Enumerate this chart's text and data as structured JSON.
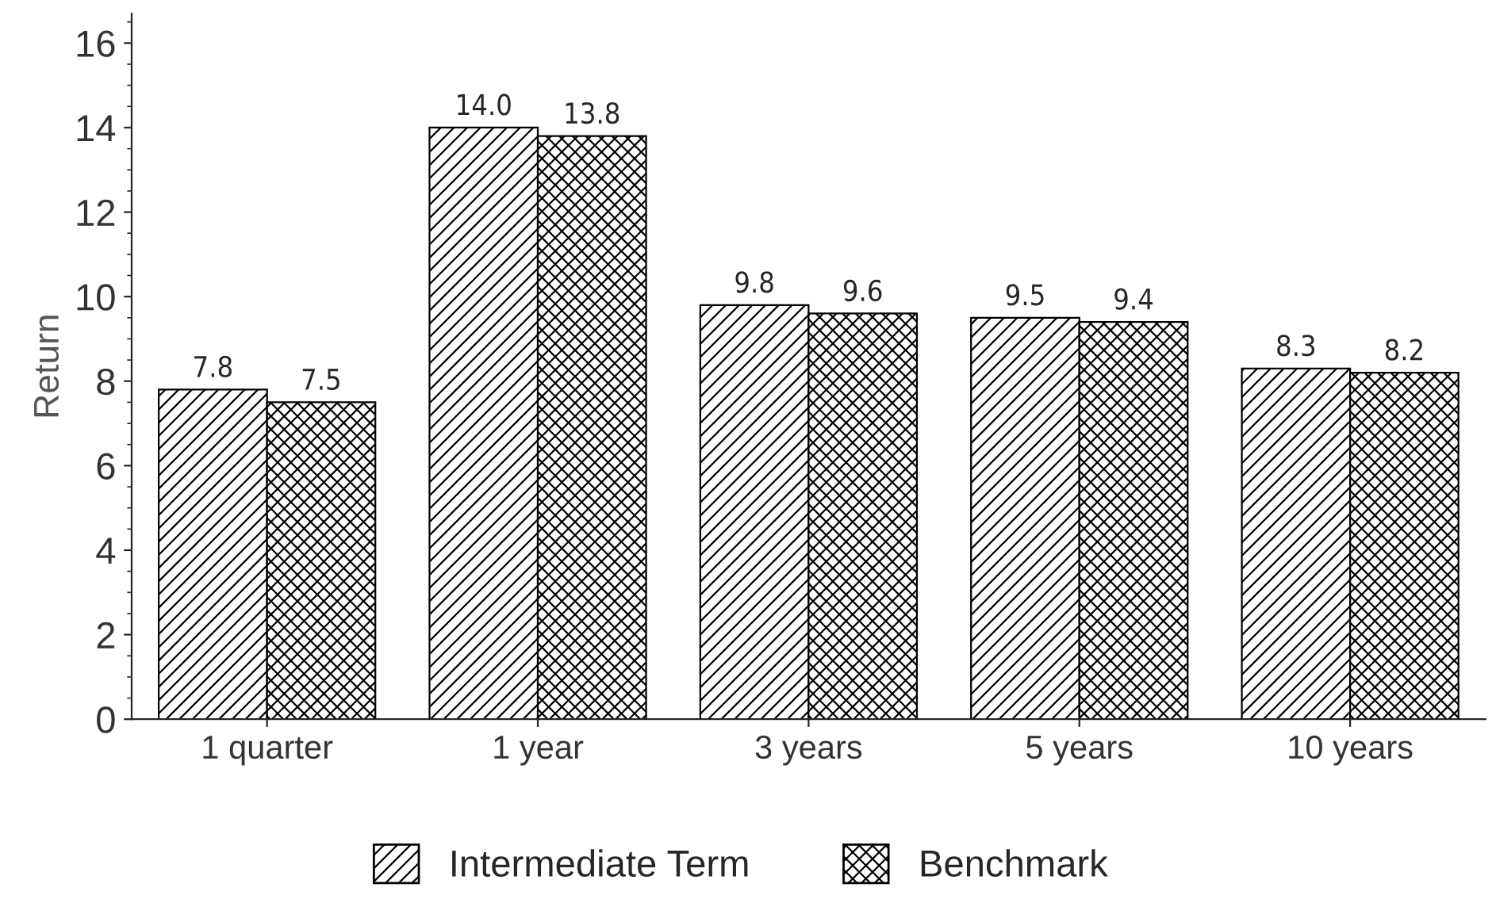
{
  "chart_data": {
    "type": "bar",
    "ylabel": "Return",
    "categories": [
      "1 quarter",
      "1 year",
      "3 years",
      "5 years",
      "10 years"
    ],
    "series": [
      {
        "name": "Intermediate Term",
        "color": "#000000",
        "values": [
          7.8,
          14.0,
          9.8,
          9.5,
          8.3
        ],
        "value_labels": [
          "7.8",
          "14.0",
          "9.8",
          "9.5",
          "8.3"
        ]
      },
      {
        "name": "Benchmark",
        "color": "#000000",
        "values": [
          7.5,
          13.8,
          9.6,
          9.4,
          8.2
        ],
        "value_labels": [
          "7.5",
          "13.8",
          "9.6",
          "9.4",
          "8.2"
        ]
      }
    ],
    "ylim": [
      0,
      16.7
    ],
    "yticks": [
      0,
      2,
      4,
      6,
      8,
      10,
      12,
      14,
      16
    ],
    "grid": false,
    "legend": "bottom"
  }
}
